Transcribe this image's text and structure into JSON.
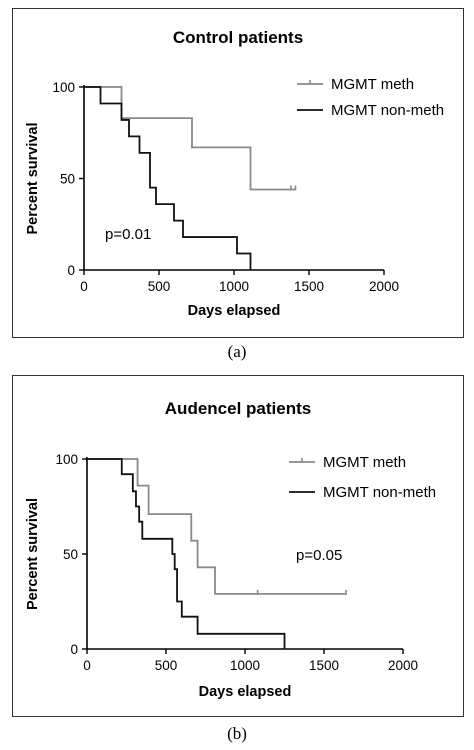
{
  "chart_data": [
    {
      "type": "line",
      "title": "Control patients",
      "xlabel": "Days elapsed",
      "ylabel": "Percent survival",
      "xlim": [
        0,
        2000
      ],
      "ylim": [
        0,
        100
      ],
      "xticks": [
        "0",
        "500",
        "1000",
        "1500",
        "2000"
      ],
      "yticks": [
        "0",
        "50",
        "100"
      ],
      "grid": false,
      "legend_position": "top-right",
      "annotation": "p=0.01",
      "panel_label": "(a)",
      "series": [
        {
          "name": "MGMT meth",
          "color": "#8a8a8a",
          "step_x": [
            0,
            250,
            250,
            720,
            720,
            1110,
            1110,
            1410
          ],
          "step_y": [
            100,
            100,
            83,
            83,
            67,
            67,
            44,
            44
          ],
          "censored_x": [
            720,
            1380,
            1410
          ],
          "censored_y": [
            67,
            44,
            44
          ]
        },
        {
          "name": "MGMT non-meth",
          "color": "#111111",
          "step_x": [
            0,
            110,
            110,
            250,
            250,
            300,
            300,
            370,
            370,
            440,
            440,
            480,
            480,
            600,
            600,
            660,
            660,
            1020,
            1020,
            1110,
            1110
          ],
          "step_y": [
            100,
            100,
            91,
            91,
            82,
            82,
            73,
            73,
            64,
            64,
            45,
            45,
            36,
            36,
            27,
            27,
            18,
            18,
            9,
            9,
            0
          ]
        }
      ]
    },
    {
      "type": "line",
      "title": "Audencel patients",
      "xlabel": "Days elapsed",
      "ylabel": "Percent survival",
      "xlim": [
        0,
        2000
      ],
      "ylim": [
        0,
        100
      ],
      "xticks": [
        "0",
        "500",
        "1000",
        "1500",
        "2000"
      ],
      "yticks": [
        "0",
        "50",
        "100"
      ],
      "grid": false,
      "legend_position": "top-right",
      "annotation": "p=0.05",
      "panel_label": "(b)",
      "series": [
        {
          "name": "MGMT meth",
          "color": "#8a8a8a",
          "step_x": [
            0,
            320,
            320,
            390,
            390,
            660,
            660,
            700,
            700,
            810,
            810,
            1640
          ],
          "step_y": [
            100,
            100,
            86,
            86,
            71,
            71,
            57,
            57,
            43,
            43,
            29,
            29
          ],
          "censored_x": [
            660,
            1080,
            1640
          ],
          "censored_y": [
            57,
            29,
            29
          ]
        },
        {
          "name": "MGMT non-meth",
          "color": "#111111",
          "step_x": [
            0,
            220,
            220,
            290,
            290,
            310,
            310,
            330,
            330,
            350,
            350,
            540,
            540,
            555,
            555,
            570,
            570,
            600,
            600,
            700,
            700,
            1250,
            1250
          ],
          "step_y": [
            100,
            100,
            92,
            92,
            83,
            83,
            75,
            75,
            67,
            67,
            58,
            58,
            50,
            50,
            42,
            42,
            25,
            25,
            17,
            17,
            8,
            8,
            0
          ]
        }
      ]
    }
  ]
}
